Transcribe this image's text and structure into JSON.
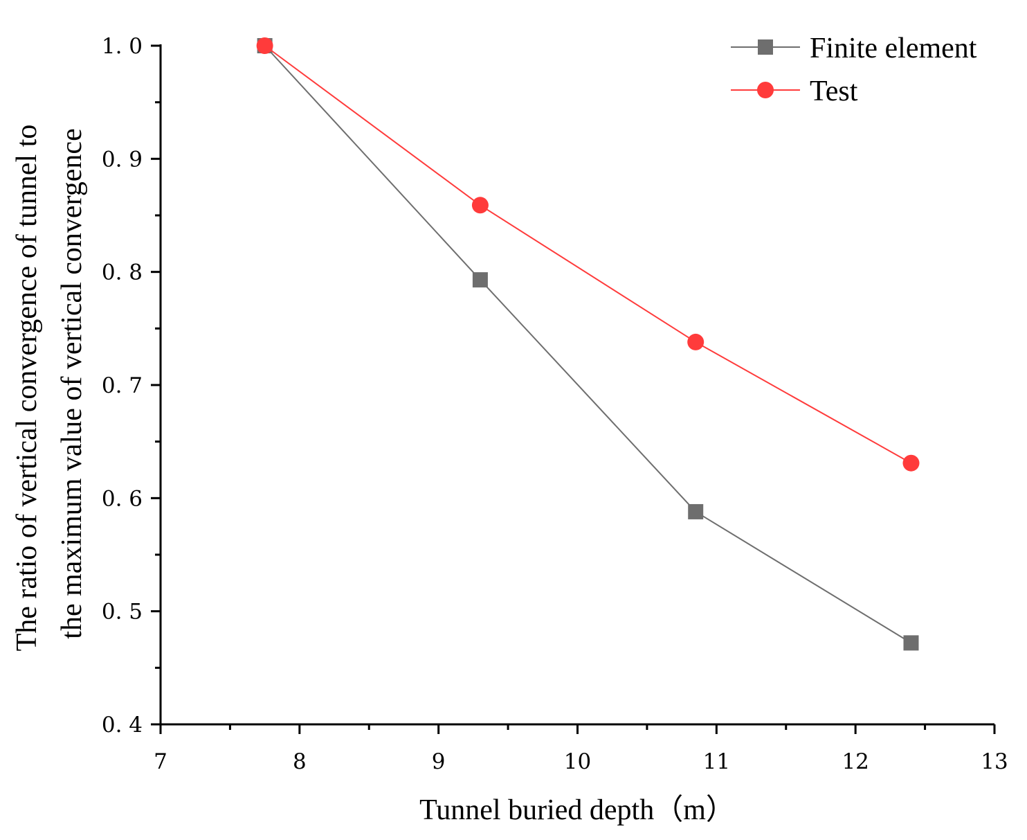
{
  "chart_data": {
    "type": "line",
    "title": "",
    "xlabel": "Tunnel buried depth（m）",
    "ylabel_lines": [
      "The ratio of vertical convergence of tunnel to",
      "the maximum value of vertical convergence"
    ],
    "xlim": [
      7,
      13
    ],
    "ylim": [
      0.4,
      1.0
    ],
    "xticks": [
      7,
      8,
      9,
      10,
      11,
      12,
      13
    ],
    "xtick_labels": [
      "7",
      "8",
      "9",
      "10",
      "11",
      "12",
      "13"
    ],
    "yticks": [
      0.4,
      0.5,
      0.6,
      0.7,
      0.8,
      0.9,
      1.0
    ],
    "ytick_labels": [
      "0. 4",
      "0. 5",
      "0. 6",
      "0. 7",
      "0. 8",
      "0. 9",
      "1. 0"
    ],
    "grid": false,
    "legend_position": "top-right",
    "series": [
      {
        "name": "Finite element",
        "color": "#6e6e6e",
        "marker": "square",
        "x": [
          7.75,
          9.3,
          10.85,
          12.4
        ],
        "y": [
          1.0,
          0.793,
          0.588,
          0.472
        ]
      },
      {
        "name": "Test",
        "color": "#ff3b3b",
        "marker": "circle",
        "x": [
          7.75,
          9.3,
          10.85,
          12.4
        ],
        "y": [
          1.0,
          0.859,
          0.738,
          0.631
        ]
      }
    ]
  }
}
